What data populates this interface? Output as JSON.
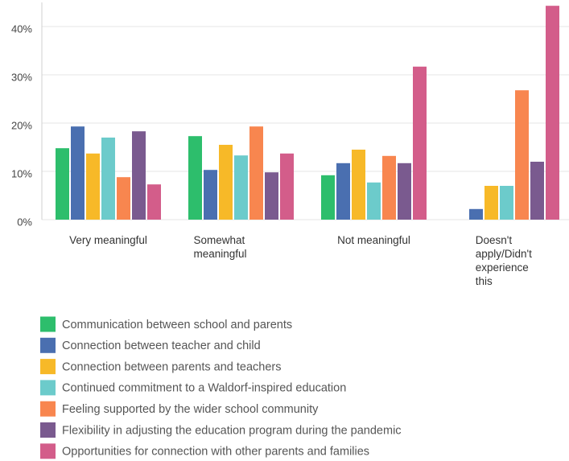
{
  "chart_data": {
    "type": "bar",
    "categories": [
      "Very meaningful",
      "Somewhat meaningful",
      "Not meaningful",
      "Doesn't apply/Didn't experience this"
    ],
    "series": [
      {
        "name": "Communication between school and parents",
        "color": "#2dbe6c",
        "values": [
          14.8,
          17.3,
          9.2,
          0
        ]
      },
      {
        "name": "Connection between teacher and child",
        "color": "#4a6fb0",
        "values": [
          19.3,
          10.3,
          11.7,
          2.2
        ]
      },
      {
        "name": "Connection between parents and teachers",
        "color": "#f7b928",
        "values": [
          13.7,
          15.5,
          14.5,
          7
        ]
      },
      {
        "name": "Continued commitment to a Waldorf-inspired education",
        "color": "#6ccbcb",
        "values": [
          17,
          13.3,
          7.7,
          7
        ]
      },
      {
        "name": "Feeling supported by the wider school community",
        "color": "#f8864f",
        "values": [
          8.8,
          19.3,
          13.2,
          26.8
        ]
      },
      {
        "name": "Flexibility in adjusting the education program during the pandemic",
        "color": "#7a5a8f",
        "values": [
          18.3,
          9.8,
          11.7,
          12
        ]
      },
      {
        "name": "Opportunities for connection with other parents and families",
        "color": "#d35d8a",
        "values": [
          7.3,
          13.7,
          31.7,
          44.3
        ]
      }
    ],
    "ylim": [
      0,
      45
    ],
    "yticks": [
      {
        "value": 0,
        "label": "0%"
      },
      {
        "value": 10,
        "label": "10%"
      },
      {
        "value": 20,
        "label": "20%"
      },
      {
        "value": 30,
        "label": "30%"
      },
      {
        "value": 40,
        "label": "40%"
      }
    ],
    "grid": true
  }
}
